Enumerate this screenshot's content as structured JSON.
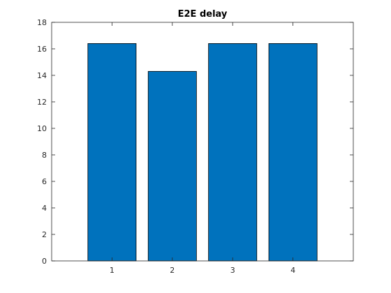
{
  "chart_data": {
    "type": "bar",
    "title": "E2E delay",
    "xlabel": "",
    "ylabel": "",
    "categories": [
      "1",
      "2",
      "3",
      "4"
    ],
    "values": [
      16.4,
      14.3,
      16.4,
      16.4
    ],
    "xlim": [
      0,
      5
    ],
    "ylim": [
      0,
      18
    ],
    "yticks": [
      0,
      2,
      4,
      6,
      8,
      10,
      12,
      14,
      16,
      18
    ],
    "grid": false,
    "bar_color": "#0072BD",
    "edge_color": "#000000"
  }
}
